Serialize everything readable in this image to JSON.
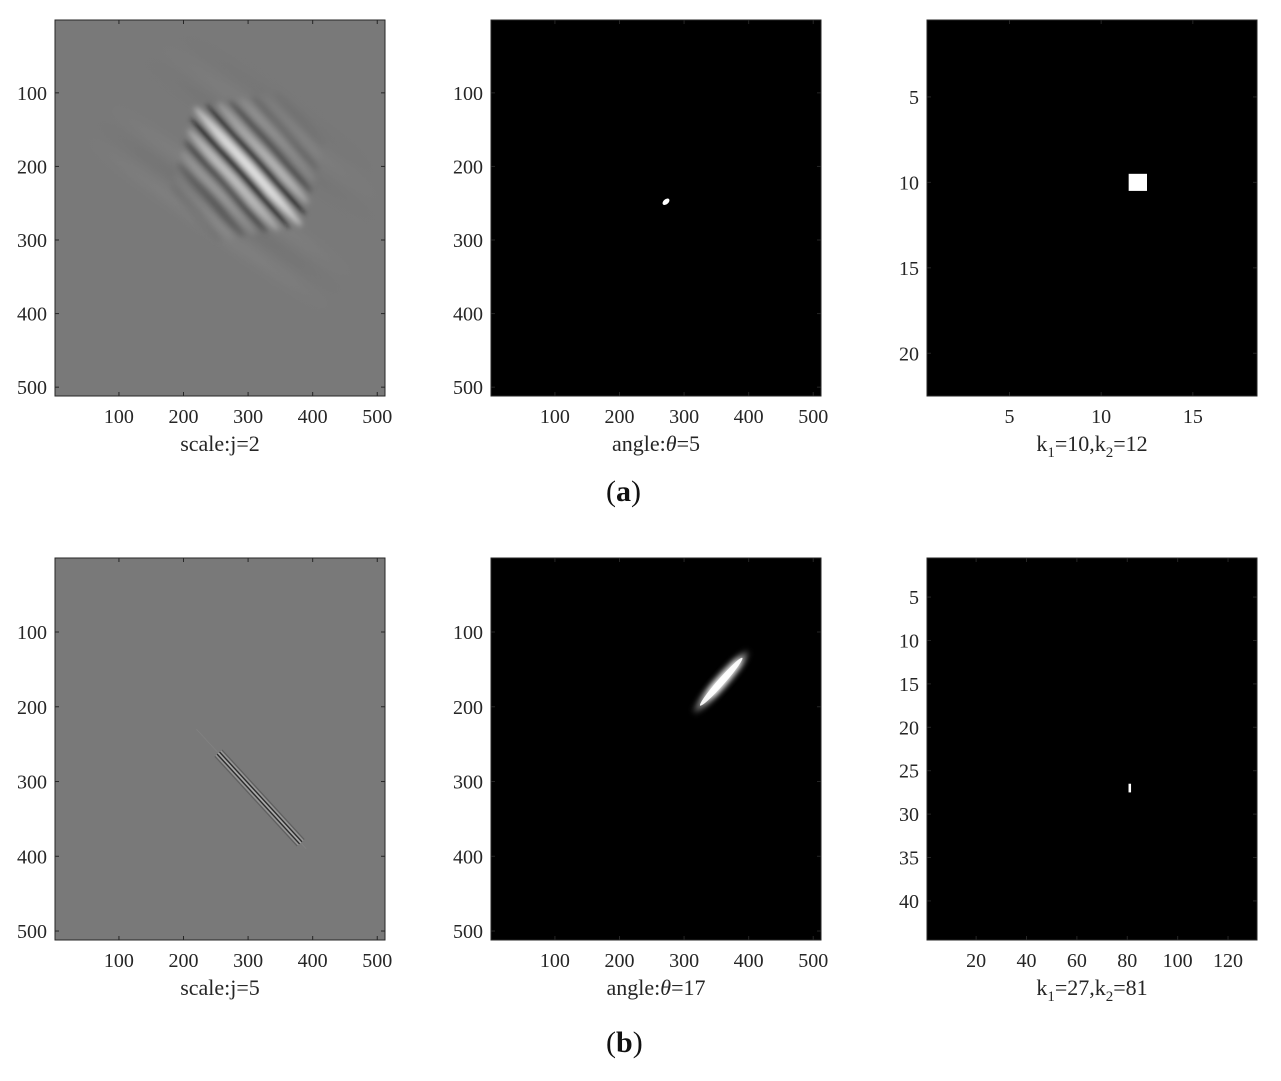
{
  "figure": {
    "row_labels": [
      {
        "open": "(",
        "letter": "a",
        "close": ")"
      },
      {
        "open": "(",
        "letter": "b",
        "close": ")"
      }
    ]
  },
  "colors": {
    "gray_background": "#797979",
    "black_background": "#000000",
    "highlight": "#ffffff"
  },
  "chart_data": [
    {
      "id": "a-scale",
      "type": "heatmap",
      "content": "gray oscillating wavelet pattern, dark/light stripes oriented diagonally, centered near (300,200)",
      "xlabel": "scale:j=2",
      "xlim": [
        1,
        512
      ],
      "ylim": [
        1,
        512
      ],
      "y_reversed": true,
      "xticks": [
        100,
        200,
        300,
        400,
        500
      ],
      "yticks": [
        100,
        200,
        300,
        400,
        500
      ]
    },
    {
      "id": "a-angle",
      "type": "heatmap",
      "content": "black field with small white blob near (272,248)",
      "xlabel": "angle:",
      "xlabel_symbol": "θ",
      "xlabel_value": "=5",
      "xlim": [
        1,
        512
      ],
      "ylim": [
        1,
        512
      ],
      "y_reversed": true,
      "xticks": [
        100,
        200,
        300,
        400,
        500
      ],
      "yticks": [
        100,
        200,
        300,
        400,
        500
      ]
    },
    {
      "id": "a-index",
      "type": "heatmap",
      "content": "black field with single white cell at column 12, row 10",
      "xlabel": "k1=10,k2=12",
      "xlabel_parts": [
        {
          "t": "k"
        },
        {
          "t": "1",
          "sub": true
        },
        {
          "t": "=10,k"
        },
        {
          "t": "2",
          "sub": true
        },
        {
          "t": "=12"
        }
      ],
      "xlim": [
        0.5,
        18.5
      ],
      "ylim": [
        0.5,
        22.5
      ],
      "y_reversed": true,
      "xticks": [
        5,
        10,
        15
      ],
      "yticks": [
        5,
        10,
        15,
        20
      ],
      "cells": [
        {
          "x": 12,
          "y": 10
        }
      ]
    },
    {
      "id": "b-scale",
      "type": "heatmap",
      "content": "gray field with thin fine-scale diagonal wavelet streak from (220,230) to (390,390)",
      "xlabel": "scale:j=5",
      "xlim": [
        1,
        512
      ],
      "ylim": [
        1,
        512
      ],
      "y_reversed": true,
      "xticks": [
        100,
        200,
        300,
        400,
        500
      ],
      "yticks": [
        100,
        200,
        300,
        400,
        500
      ]
    },
    {
      "id": "b-angle",
      "type": "heatmap",
      "content": "black field with elongated white streak from (315,208) to (400,125)",
      "xlabel": "angle:",
      "xlabel_symbol": "θ",
      "xlabel_value": "=17",
      "xlim": [
        1,
        512
      ],
      "ylim": [
        1,
        512
      ],
      "y_reversed": true,
      "xticks": [
        100,
        200,
        300,
        400,
        500
      ],
      "yticks": [
        100,
        200,
        300,
        400,
        500
      ]
    },
    {
      "id": "b-index",
      "type": "heatmap",
      "content": "black field with single small white cell at column 81, row 27",
      "xlabel": "k1=27,k2=81",
      "xlabel_parts": [
        {
          "t": "k"
        },
        {
          "t": "1",
          "sub": true
        },
        {
          "t": "=27,k"
        },
        {
          "t": "2",
          "sub": true
        },
        {
          "t": "=81"
        }
      ],
      "xlim": [
        0.5,
        131.5
      ],
      "ylim": [
        0.5,
        44.5
      ],
      "y_reversed": true,
      "xticks": [
        20,
        40,
        60,
        80,
        100,
        120
      ],
      "yticks": [
        5,
        10,
        15,
        20,
        25,
        30,
        35,
        40
      ],
      "cells": [
        {
          "x": 81,
          "y": 27
        }
      ]
    }
  ]
}
